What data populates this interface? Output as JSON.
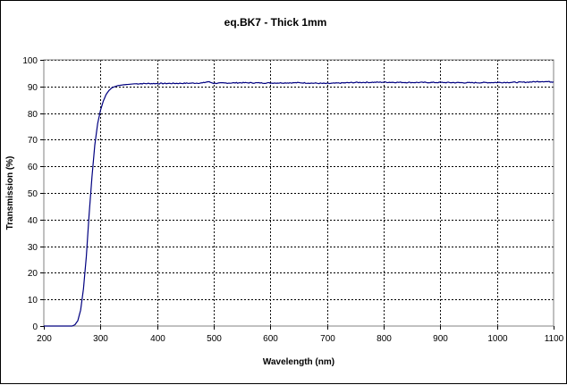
{
  "chart_data": {
    "type": "line",
    "title": "eq.BK7 - Thick 1mm",
    "xlabel": "Wavelength (nm)",
    "ylabel": "Transmission (%)",
    "xlim": [
      200,
      1100
    ],
    "ylim": [
      0,
      100
    ],
    "x_ticks": [
      "200",
      "300",
      "400",
      "500",
      "600",
      "700",
      "800",
      "900",
      "1000",
      "1100"
    ],
    "y_ticks": [
      "0",
      "10",
      "20",
      "30",
      "40",
      "50",
      "60",
      "70",
      "80",
      "90",
      "100"
    ],
    "grid": true,
    "legend": "none",
    "colors": {
      "line": "#000080",
      "grid": "#000000",
      "background": "#ffffff"
    },
    "series": [
      {
        "x": [
          200,
          250,
          255,
          260,
          265,
          270,
          275,
          280,
          285,
          290,
          295,
          300,
          305,
          310,
          315,
          320,
          330,
          340,
          350,
          360,
          380,
          400,
          450,
          480,
          490,
          500,
          550,
          600,
          650,
          700,
          750,
          800,
          850,
          900,
          950,
          1000,
          1050,
          1080,
          1100
        ],
        "y": [
          0,
          0,
          0.5,
          2,
          6,
          14,
          26,
          42,
          56,
          68,
          76,
          81,
          84.5,
          87,
          88.5,
          89.5,
          90.3,
          90.6,
          90.8,
          91,
          91.1,
          91.1,
          91.2,
          91.3,
          91.8,
          91.2,
          91.4,
          91.3,
          91.4,
          91.1,
          91.5,
          91.6,
          91.5,
          91.5,
          91.4,
          91.5,
          91.6,
          91.9,
          91.7
        ]
      }
    ]
  }
}
